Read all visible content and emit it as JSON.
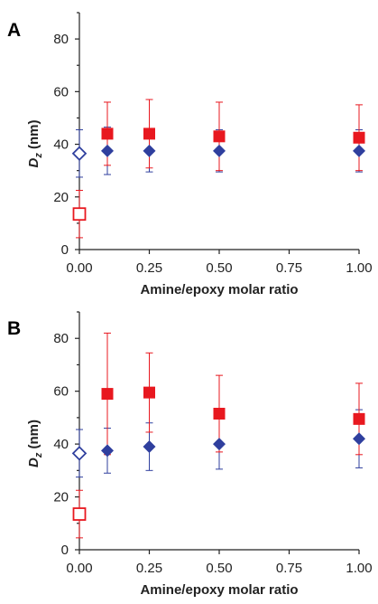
{
  "chart_data": [
    {
      "panel": "A",
      "type": "scatter",
      "xlabel": "Amine/epoxy molar ratio",
      "ylabel": "Dz (nm)",
      "xlim": [
        0,
        1
      ],
      "ylim": [
        0,
        90
      ],
      "xticks": [
        "0.00",
        "0.25",
        "0.50",
        "0.75",
        "1.00"
      ],
      "yticks": [
        "0",
        "20",
        "40",
        "60",
        "80"
      ],
      "series": [
        {
          "marker": "diamond",
          "color": "#2f3f9e",
          "filled": true,
          "points": [
            {
              "x": 0.1,
              "y": 37.5,
              "err": 9
            },
            {
              "x": 0.25,
              "y": 37.5,
              "err": 8
            },
            {
              "x": 0.5,
              "y": 37.5,
              "err": 8
            },
            {
              "x": 1.0,
              "y": 37.5,
              "err": 8
            }
          ]
        },
        {
          "marker": "diamond",
          "color": "#2f3f9e",
          "filled": false,
          "points": [
            {
              "x": 0.0,
              "y": 36.5,
              "err": 9
            }
          ]
        },
        {
          "marker": "square",
          "color": "#e8181f",
          "filled": true,
          "points": [
            {
              "x": 0.1,
              "y": 44,
              "err": 12
            },
            {
              "x": 0.25,
              "y": 44,
              "err": 13
            },
            {
              "x": 0.5,
              "y": 43,
              "err": 13
            },
            {
              "x": 1.0,
              "y": 42.5,
              "err": 12.5
            }
          ]
        },
        {
          "marker": "square",
          "color": "#e8181f",
          "filled": false,
          "points": [
            {
              "x": 0.0,
              "y": 13.5,
              "err": 9
            }
          ]
        }
      ]
    },
    {
      "panel": "B",
      "type": "scatter",
      "xlabel": "Amine/epoxy molar ratio",
      "ylabel": "Dz (nm)",
      "xlim": [
        0,
        1
      ],
      "ylim": [
        0,
        90
      ],
      "xticks": [
        "0.00",
        "0.25",
        "0.50",
        "0.75",
        "1.00"
      ],
      "yticks": [
        "0",
        "20",
        "40",
        "60",
        "80"
      ],
      "series": [
        {
          "marker": "diamond",
          "color": "#2f3f9e",
          "filled": true,
          "points": [
            {
              "x": 0.1,
              "y": 37.5,
              "err": 8.5
            },
            {
              "x": 0.25,
              "y": 39,
              "err": 9
            },
            {
              "x": 0.5,
              "y": 40,
              "err": 9.5
            },
            {
              "x": 1.0,
              "y": 42,
              "err": 11
            }
          ]
        },
        {
          "marker": "diamond",
          "color": "#2f3f9e",
          "filled": false,
          "points": [
            {
              "x": 0.0,
              "y": 36.5,
              "err": 9
            }
          ]
        },
        {
          "marker": "square",
          "color": "#e8181f",
          "filled": true,
          "points": [
            {
              "x": 0.1,
              "y": 59,
              "err": 23
            },
            {
              "x": 0.25,
              "y": 59.5,
              "err": 15
            },
            {
              "x": 0.5,
              "y": 51.5,
              "err": 14.5
            },
            {
              "x": 1.0,
              "y": 49.5,
              "err": 13.5
            }
          ]
        },
        {
          "marker": "square",
          "color": "#e8181f",
          "filled": false,
          "points": [
            {
              "x": 0.0,
              "y": 13.5,
              "err": 9
            }
          ]
        }
      ]
    }
  ]
}
